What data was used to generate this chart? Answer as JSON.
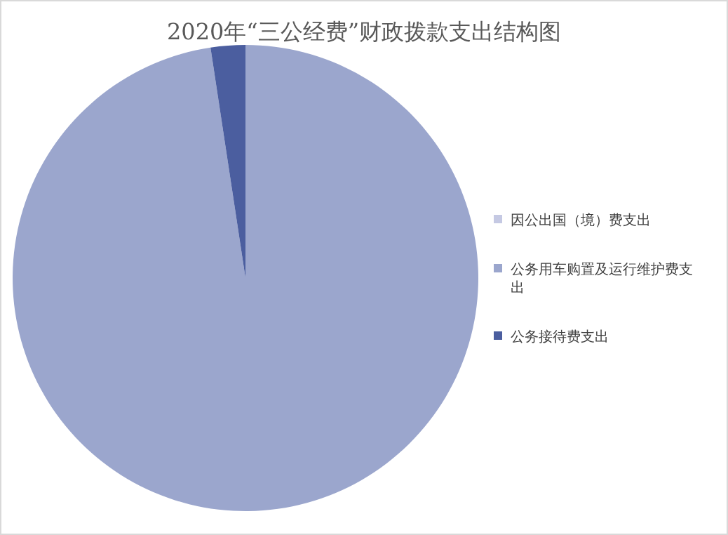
{
  "chart_data": {
    "type": "pie",
    "title": "2020年“三公经费”财政拨款支出结构图",
    "categories": [
      "因公出国（境）费支出",
      "公务用车购置及运行维护费支出",
      "公务接待费支出"
    ],
    "values": [
      0,
      97.6,
      2.4
    ],
    "colors": [
      "#c5c9e3",
      "#9ba6cd",
      "#4b5e9f"
    ],
    "legend": "right"
  }
}
